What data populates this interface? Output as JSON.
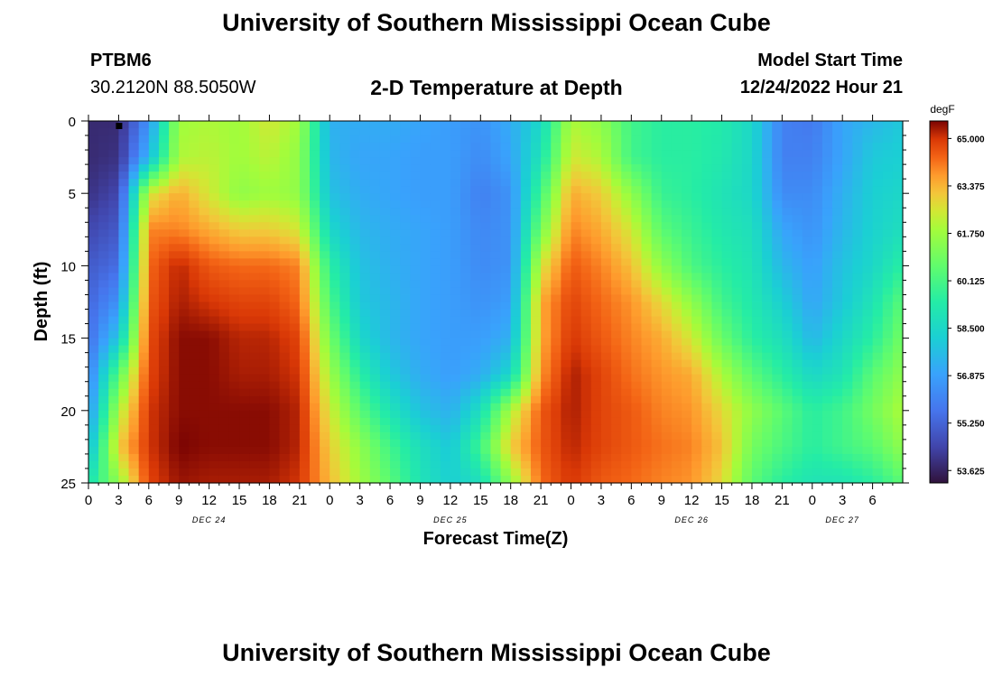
{
  "header": {
    "title": "University of Southern Mississippi Ocean Cube",
    "station": "PTBM6",
    "coords": "30.2120N  88.5050W",
    "plot_title": "2-D Temperature at Depth",
    "model_start_label": "Model Start Time",
    "model_start_value": "12/24/2022 Hour 21"
  },
  "footer": {
    "title": "University of Southern Mississippi Ocean Cube"
  },
  "chart_data": {
    "type": "heatmap",
    "title": "2-D Temperature at Depth",
    "xlabel": "Forecast Time(Z)",
    "ylabel": "Depth (ft)",
    "colorbar_label": "degF",
    "xlim": [
      0,
      81
    ],
    "ylim": [
      25,
      0
    ],
    "x_tick_labels": [
      "0",
      "3",
      "6",
      "9",
      "12",
      "15",
      "18",
      "21",
      "0",
      "3",
      "6",
      "9",
      "12",
      "15",
      "18",
      "21",
      "0",
      "3",
      "6",
      "9",
      "12",
      "15",
      "18",
      "21",
      "0",
      "3",
      "6"
    ],
    "day_labels": [
      {
        "label": "DEC 24",
        "hour": 12
      },
      {
        "label": "DEC 25",
        "hour": 36
      },
      {
        "label": "DEC 26",
        "hour": 60
      },
      {
        "label": "DEC 27",
        "hour": 75
      }
    ],
    "y_ticks": [
      0,
      5,
      10,
      15,
      20,
      25
    ],
    "colorbar_ticks": [
      "65.000",
      "63.375",
      "61.750",
      "60.125",
      "58.500",
      "56.875",
      "55.250",
      "53.625"
    ],
    "value_range": [
      53.2,
      65.6
    ],
    "hours": [
      0,
      3,
      6,
      9,
      12,
      15,
      18,
      21,
      24,
      27,
      30,
      33,
      36,
      39,
      42,
      45,
      48,
      51,
      54,
      57,
      60,
      63,
      66,
      69,
      72,
      75,
      78,
      81
    ],
    "depths": [
      0,
      2.5,
      5,
      7.5,
      10,
      12.5,
      15,
      17.5,
      20,
      22.5,
      25
    ],
    "temperature_degF": [
      [
        53.8,
        53.8,
        56.5,
        61.8,
        62.0,
        61.8,
        62.5,
        61.8,
        57.3,
        57.2,
        57.2,
        57.0,
        56.8,
        56.5,
        57.2,
        58.5,
        62.0,
        61.5,
        60.0,
        59.5,
        59.5,
        59.3,
        58.5,
        56.0,
        55.8,
        57.0,
        57.5,
        58.0
      ],
      [
        53.8,
        54.0,
        57.5,
        62.0,
        62.2,
        61.8,
        62.2,
        61.5,
        57.5,
        57.0,
        57.0,
        56.8,
        56.8,
        56.3,
        57.0,
        59.0,
        62.5,
        62.0,
        60.0,
        59.5,
        59.5,
        59.2,
        58.5,
        56.0,
        56.0,
        57.0,
        58.0,
        58.2
      ],
      [
        54.0,
        54.5,
        62.5,
        63.5,
        62.5,
        61.5,
        61.8,
        61.5,
        57.8,
        57.2,
        57.0,
        56.8,
        56.8,
        56.0,
        56.5,
        60.0,
        63.5,
        63.0,
        61.5,
        59.8,
        59.5,
        59.0,
        58.5,
        56.3,
        56.3,
        57.3,
        58.2,
        58.5
      ],
      [
        54.5,
        55.0,
        64.0,
        64.0,
        63.5,
        63.0,
        63.0,
        62.5,
        58.5,
        57.5,
        57.2,
        57.0,
        56.8,
        56.2,
        56.5,
        61.0,
        64.0,
        63.5,
        62.5,
        60.5,
        59.8,
        59.2,
        58.8,
        57.0,
        56.5,
        57.5,
        58.3,
        58.8
      ],
      [
        55.0,
        55.5,
        64.3,
        65.2,
        64.5,
        64.3,
        64.3,
        64.0,
        59.5,
        57.8,
        57.3,
        57.0,
        56.8,
        56.3,
        56.5,
        62.5,
        64.5,
        64.0,
        63.2,
        61.5,
        60.2,
        59.5,
        59.0,
        57.5,
        56.8,
        57.8,
        58.5,
        59.5
      ],
      [
        55.3,
        56.5,
        64.5,
        65.3,
        65.0,
        64.8,
        64.8,
        64.3,
        60.2,
        58.0,
        57.5,
        57.0,
        56.8,
        56.5,
        56.8,
        63.5,
        64.8,
        64.3,
        63.8,
        62.8,
        61.5,
        60.0,
        59.2,
        58.2,
        57.0,
        58.0,
        59.0,
        60.5
      ],
      [
        55.5,
        58.0,
        64.7,
        65.5,
        65.5,
        65.2,
        65.2,
        64.8,
        61.0,
        58.5,
        57.5,
        57.0,
        56.8,
        56.8,
        57.3,
        63.5,
        65.0,
        64.5,
        64.0,
        63.5,
        62.5,
        60.8,
        59.5,
        58.8,
        57.5,
        58.5,
        59.5,
        61.0
      ],
      [
        56.0,
        60.5,
        64.8,
        65.5,
        65.5,
        65.3,
        65.3,
        65.0,
        61.8,
        59.5,
        58.0,
        57.2,
        56.8,
        57.2,
        58.5,
        63.8,
        65.3,
        64.8,
        64.2,
        63.8,
        63.5,
        62.0,
        60.5,
        59.5,
        58.5,
        59.0,
        60.5,
        61.5
      ],
      [
        56.5,
        62.0,
        65.0,
        65.5,
        65.5,
        65.5,
        65.5,
        65.2,
        62.5,
        60.5,
        59.0,
        57.8,
        57.3,
        58.8,
        62.0,
        64.5,
        65.3,
        64.8,
        64.5,
        64.0,
        63.8,
        62.8,
        61.5,
        60.5,
        59.5,
        60.0,
        61.0,
        62.0
      ],
      [
        57.5,
        63.0,
        65.0,
        65.6,
        65.5,
        65.5,
        65.5,
        65.2,
        63.0,
        61.5,
        60.0,
        58.8,
        58.0,
        60.0,
        63.0,
        64.5,
        65.2,
        64.8,
        64.5,
        64.2,
        64.0,
        63.2,
        61.0,
        60.2,
        59.5,
        60.0,
        60.5,
        61.5
      ],
      [
        59.0,
        61.5,
        64.8,
        65.4,
        65.3,
        65.3,
        65.3,
        65.0,
        63.3,
        61.8,
        60.5,
        59.0,
        58.2,
        58.8,
        61.5,
        64.3,
        65.0,
        64.5,
        64.3,
        64.0,
        63.8,
        62.8,
        60.5,
        59.5,
        59.0,
        59.0,
        59.5,
        60.5
      ]
    ]
  }
}
